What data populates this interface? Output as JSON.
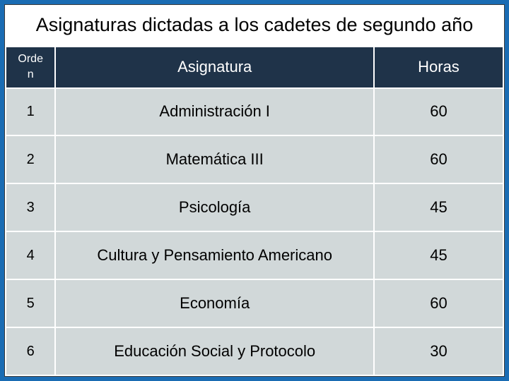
{
  "title": "Asignaturas dictadas a los cadetes de segundo año",
  "colors": {
    "page_bg": "#1a6cb3",
    "header_row_bg": "#1f3349",
    "header_row_text": "#ffffff",
    "title_bg": "#ffffff",
    "title_text": "#000000",
    "cell_bg": "#d1d8d9",
    "cell_text": "#000000",
    "border": "#ffffff"
  },
  "typography": {
    "title_fontsize": 27,
    "header_fontsize": 22,
    "order_header_fontsize": 16,
    "cell_fontsize": 22,
    "font_family": "Arial"
  },
  "table": {
    "columns": [
      {
        "key": "orden",
        "label_top": "Orde",
        "label_bottom": "n",
        "width_pct": 10,
        "align": "center"
      },
      {
        "key": "asignatura",
        "label": "Asignatura",
        "width_pct": 64,
        "align": "center"
      },
      {
        "key": "horas",
        "label": "Horas",
        "width_pct": 26,
        "align": "center"
      }
    ],
    "rows": [
      {
        "orden": "1",
        "asignatura": "Administración I",
        "horas": "60"
      },
      {
        "orden": "2",
        "asignatura": "Matemática III",
        "horas": "60"
      },
      {
        "orden": "3",
        "asignatura": "Psicología",
        "horas": "45"
      },
      {
        "orden": "4",
        "asignatura": "Cultura y Pensamiento Americano",
        "horas": "45"
      },
      {
        "orden": "5",
        "asignatura": "Economía",
        "horas": "60"
      },
      {
        "orden": "6",
        "asignatura": "Educación Social y Protocolo",
        "horas": "30"
      }
    ]
  }
}
